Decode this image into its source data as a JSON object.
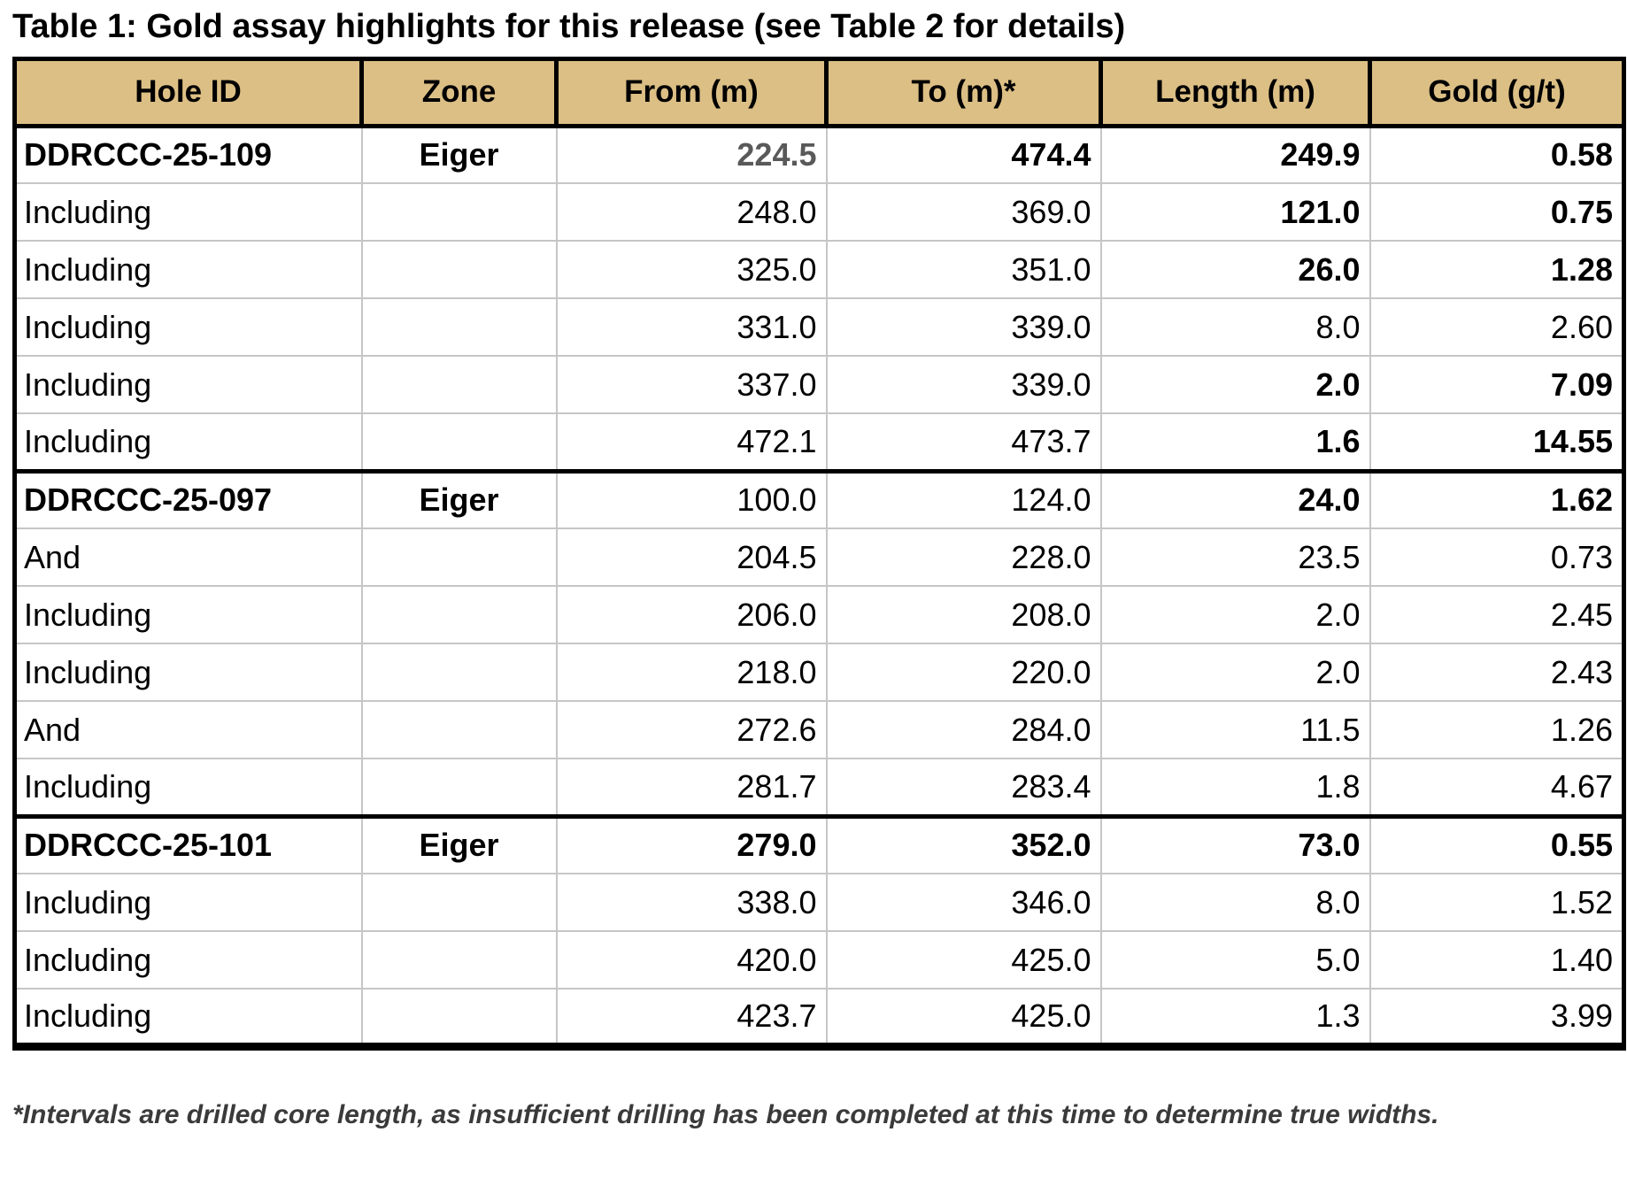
{
  "title": "Table 1: Gold assay highlights for this release (see Table 2 for details)",
  "footnote": "*Intervals are drilled core length, as insufficient drilling has been completed at this time to determine true widths.",
  "colors": {
    "header_bg": "#dcbf85",
    "grid_line": "#c6c6c6",
    "border": "#000000",
    "muted_value": "#595959",
    "footnote_text": "#3a3a3a"
  },
  "table": {
    "columns": [
      "Hole ID",
      "Zone",
      "From (m)",
      "To (m)*",
      "Length (m)",
      "Gold (g/t)"
    ],
    "rows": [
      {
        "section_start": true,
        "cells": [
          {
            "text": "DDRCCC-25-109",
            "bold": true
          },
          {
            "text": "Eiger",
            "bold": true
          },
          {
            "text": "224.5",
            "bold": true,
            "muted": true
          },
          {
            "text": "474.4",
            "bold": true
          },
          {
            "text": "249.9",
            "bold": true
          },
          {
            "text": "0.58",
            "bold": true
          }
        ]
      },
      {
        "cells": [
          {
            "text": "Including"
          },
          {
            "text": ""
          },
          {
            "text": "248.0"
          },
          {
            "text": "369.0"
          },
          {
            "text": "121.0",
            "bold": true
          },
          {
            "text": "0.75",
            "bold": true
          }
        ]
      },
      {
        "cells": [
          {
            "text": "Including"
          },
          {
            "text": ""
          },
          {
            "text": "325.0"
          },
          {
            "text": "351.0"
          },
          {
            "text": "26.0",
            "bold": true
          },
          {
            "text": "1.28",
            "bold": true
          }
        ]
      },
      {
        "cells": [
          {
            "text": "Including"
          },
          {
            "text": ""
          },
          {
            "text": "331.0"
          },
          {
            "text": "339.0"
          },
          {
            "text": "8.0"
          },
          {
            "text": "2.60"
          }
        ]
      },
      {
        "cells": [
          {
            "text": "Including"
          },
          {
            "text": ""
          },
          {
            "text": "337.0"
          },
          {
            "text": "339.0"
          },
          {
            "text": "2.0",
            "bold": true
          },
          {
            "text": "7.09",
            "bold": true
          }
        ]
      },
      {
        "cells": [
          {
            "text": "Including"
          },
          {
            "text": ""
          },
          {
            "text": "472.1"
          },
          {
            "text": "473.7"
          },
          {
            "text": "1.6",
            "bold": true
          },
          {
            "text": "14.55",
            "bold": true
          }
        ]
      },
      {
        "section_start": true,
        "cells": [
          {
            "text": "DDRCCC-25-097",
            "bold": true
          },
          {
            "text": "Eiger",
            "bold": true
          },
          {
            "text": "100.0"
          },
          {
            "text": "124.0"
          },
          {
            "text": "24.0",
            "bold": true
          },
          {
            "text": "1.62",
            "bold": true
          }
        ]
      },
      {
        "cells": [
          {
            "text": "And"
          },
          {
            "text": ""
          },
          {
            "text": "204.5"
          },
          {
            "text": "228.0"
          },
          {
            "text": "23.5"
          },
          {
            "text": "0.73"
          }
        ]
      },
      {
        "cells": [
          {
            "text": "Including"
          },
          {
            "text": ""
          },
          {
            "text": "206.0"
          },
          {
            "text": "208.0"
          },
          {
            "text": "2.0"
          },
          {
            "text": "2.45"
          }
        ]
      },
      {
        "cells": [
          {
            "text": "Including"
          },
          {
            "text": ""
          },
          {
            "text": "218.0"
          },
          {
            "text": "220.0"
          },
          {
            "text": "2.0"
          },
          {
            "text": "2.43"
          }
        ]
      },
      {
        "cells": [
          {
            "text": "And"
          },
          {
            "text": ""
          },
          {
            "text": "272.6"
          },
          {
            "text": "284.0"
          },
          {
            "text": "11.5"
          },
          {
            "text": "1.26"
          }
        ]
      },
      {
        "cells": [
          {
            "text": "Including"
          },
          {
            "text": ""
          },
          {
            "text": "281.7"
          },
          {
            "text": "283.4"
          },
          {
            "text": "1.8"
          },
          {
            "text": "4.67"
          }
        ]
      },
      {
        "section_start": true,
        "cells": [
          {
            "text": "DDRCCC-25-101",
            "bold": true
          },
          {
            "text": "Eiger",
            "bold": true
          },
          {
            "text": "279.0",
            "bold": true
          },
          {
            "text": "352.0",
            "bold": true
          },
          {
            "text": "73.0",
            "bold": true
          },
          {
            "text": "0.55",
            "bold": true
          }
        ]
      },
      {
        "cells": [
          {
            "text": "Including"
          },
          {
            "text": ""
          },
          {
            "text": "338.0"
          },
          {
            "text": "346.0"
          },
          {
            "text": "8.0"
          },
          {
            "text": "1.52"
          }
        ]
      },
      {
        "cells": [
          {
            "text": "Including"
          },
          {
            "text": ""
          },
          {
            "text": "420.0"
          },
          {
            "text": "425.0"
          },
          {
            "text": "5.0"
          },
          {
            "text": "1.40"
          }
        ]
      },
      {
        "cells": [
          {
            "text": "Including"
          },
          {
            "text": ""
          },
          {
            "text": "423.7"
          },
          {
            "text": "425.0"
          },
          {
            "text": "1.3"
          },
          {
            "text": "3.99"
          }
        ]
      }
    ]
  }
}
